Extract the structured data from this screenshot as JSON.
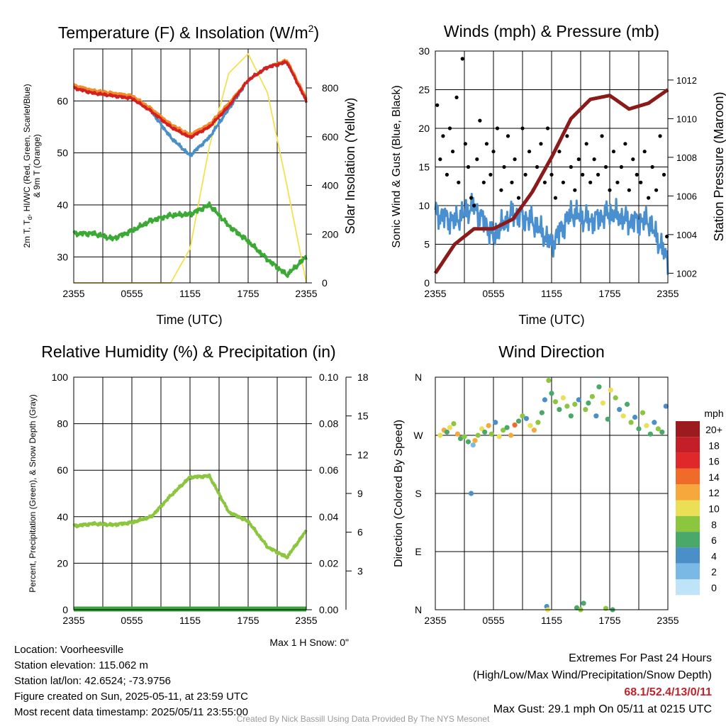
{
  "x_ticks": [
    "2355",
    "0555",
    "1155",
    "1755",
    "2355"
  ],
  "panels": {
    "temperature": {
      "title_main": "Temperature (F) & Insolation (W/m",
      "title_sup": "2",
      "title_end": ")",
      "xlabel": "Time (UTC)",
      "ylabel_left_1": "2m T, T",
      "ylabel_left_sub": "d",
      "ylabel_left_2": ", HI/WC (Red, Green, Scarlet/Blue)",
      "ylabel_left_3": "& 9m T (Orange)",
      "ylabel_right": "Solar Insolation (Yellow)"
    },
    "winds": {
      "title": "Winds (mph) & Pressure (mb)",
      "xlabel": "Time (UTC)",
      "ylabel_left": "Sonic Wind & Gust (Blue, Black)",
      "ylabel_right": "Station Pressure (Maroon)"
    },
    "humidity": {
      "title": "Relative Humidity (%) & Precipitation (in)",
      "ylabel_left": "Percent, Precipitation (Green), & Snow Depth (Gray)",
      "snow_note": "Max 1 H Snow: 0\""
    },
    "direction": {
      "title": "Wind Direction",
      "ylabel": "Direction (Colored By Speed)",
      "legend_title": "mph"
    }
  },
  "info": {
    "location": "Location: Voorheesville",
    "elevation": "Station elevation: 115.062 m",
    "latlon": "Station lat/lon: 42.6524; -73.9756",
    "created": "Figure created on Sun, 2025-05-11, at 23:59 UTC",
    "recent": "Most recent data timestamp: 2025/05/11 23:55:00"
  },
  "extremes": {
    "title": "Extremes For Past 24 Hours",
    "subtitle": "(High/Low/Max Wind/Precipitation/Snow Depth)",
    "values": "68.1/52.4/13/0/11",
    "gust": "Max Gust: 29.1 mph On 05/11 at 0215 UTC"
  },
  "credit": "Created By Nick Bassill Using Data Provided By The NYS Mesonet",
  "colors": {
    "temp_red": "#d42020",
    "temp_orange": "#f28c28",
    "temp_blue": "#4a90c8",
    "dewpoint_green": "#3aaa35",
    "solar_yellow": "#f5e050",
    "wind_blue": "#4a90d0",
    "gust_black": "#000000",
    "pressure_maroon": "#8b1a1a",
    "rh_green": "#8cc63f",
    "precip_green": "#3aa33a"
  },
  "chart_data": [
    {
      "type": "line",
      "x": [
        0,
        2,
        4,
        6,
        8,
        10,
        12,
        14,
        16,
        18,
        20,
        22,
        24
      ],
      "ylim_left": [
        25,
        70
      ],
      "ylim_right": [
        0,
        960
      ],
      "y_ticks_left": [
        30,
        40,
        50,
        60
      ],
      "y_ticks_right": [
        0,
        200,
        400,
        600,
        800
      ],
      "series": [
        {
          "key": "t2m",
          "axis": "left",
          "values": [
            62.5,
            61.5,
            61,
            60.5,
            58,
            55,
            53,
            55,
            59,
            64,
            66.5,
            67.5,
            60
          ]
        },
        {
          "key": "t9m",
          "axis": "left",
          "values": [
            63,
            62,
            61.5,
            61,
            58.5,
            55.5,
            53.5,
            55.5,
            59.5,
            64,
            66.5,
            67.8,
            60.5
          ]
        },
        {
          "key": "hiwc",
          "axis": "left",
          "values": [
            null,
            null,
            null,
            null,
            58,
            53,
            49.5,
            53,
            58.5,
            64,
            66.5,
            67.5,
            60
          ]
        },
        {
          "key": "dewpoint",
          "axis": "left",
          "values": [
            34.5,
            34.5,
            33.5,
            35,
            37,
            38,
            38.2,
            40,
            36,
            33,
            29.5,
            26.5,
            30
          ]
        },
        {
          "key": "solar",
          "axis": "right",
          "values": [
            0,
            0,
            0,
            0,
            0,
            0,
            140,
            560,
            860,
            940,
            780,
            400,
            0
          ]
        }
      ]
    },
    {
      "type": "line",
      "x": [
        0,
        2,
        4,
        6,
        8,
        10,
        12,
        14,
        16,
        18,
        20,
        22,
        24
      ],
      "ylim_left": [
        0,
        30
      ],
      "ylim_right": [
        1001.5,
        1013.5
      ],
      "y_ticks_left": [
        0,
        5,
        10,
        15,
        20,
        25,
        30
      ],
      "y_ticks_right": [
        1002,
        1004,
        1006,
        1008,
        1010,
        1012
      ],
      "series": [
        {
          "key": "sonic_wind",
          "axis": "left",
          "values": [
            9,
            8,
            10,
            6,
            9,
            8,
            5,
            9,
            8,
            9,
            8,
            8,
            3
          ]
        },
        {
          "key": "pressure",
          "axis": "right",
          "values": [
            1002,
            1003.5,
            1004.3,
            1004.3,
            1004.8,
            1006.2,
            1008,
            1010,
            1011,
            1011.2,
            1010.5,
            1010.8,
            1011.5
          ]
        }
      ],
      "gust_points": [
        [
          0.2,
          23
        ],
        [
          0.5,
          16
        ],
        [
          0.8,
          19
        ],
        [
          1.2,
          14
        ],
        [
          1.5,
          20
        ],
        [
          1.8,
          17
        ],
        [
          2.2,
          24
        ],
        [
          2.4,
          13
        ],
        [
          2.8,
          29
        ],
        [
          3.1,
          18
        ],
        [
          3.4,
          15
        ],
        [
          3.7,
          11
        ],
        [
          4.0,
          10
        ],
        [
          4.3,
          16
        ],
        [
          4.6,
          21
        ],
        [
          5.0,
          13
        ],
        [
          5.3,
          18
        ],
        [
          5.7,
          14
        ],
        [
          6.0,
          17
        ],
        [
          6.4,
          20
        ],
        [
          6.8,
          12
        ],
        [
          7.1,
          15
        ],
        [
          7.5,
          19
        ],
        [
          7.9,
          13
        ],
        [
          8.2,
          16
        ],
        [
          8.6,
          11
        ],
        [
          9.0,
          20
        ],
        [
          9.3,
          14
        ],
        [
          9.7,
          17
        ],
        [
          10.1,
          12
        ],
        [
          10.5,
          15
        ],
        [
          10.9,
          18
        ],
        [
          11.3,
          13
        ],
        [
          11.6,
          20
        ],
        [
          12.0,
          14
        ],
        [
          12.4,
          11
        ],
        [
          12.8,
          17
        ],
        [
          13.2,
          13
        ],
        [
          13.6,
          19
        ],
        [
          14.0,
          15
        ],
        [
          14.4,
          12
        ],
        [
          14.8,
          16
        ],
        [
          15.2,
          14
        ],
        [
          15.6,
          18
        ],
        [
          16.0,
          13
        ],
        [
          16.4,
          16
        ],
        [
          16.8,
          14
        ],
        [
          17.2,
          19
        ],
        [
          17.6,
          15
        ],
        [
          18.0,
          12
        ],
        [
          18.4,
          17
        ],
        [
          18.8,
          13
        ],
        [
          19.2,
          15
        ],
        [
          19.6,
          18
        ],
        [
          20.0,
          12
        ],
        [
          20.4,
          16
        ],
        [
          20.8,
          14
        ],
        [
          21.2,
          13
        ],
        [
          21.6,
          17
        ],
        [
          22.0,
          11
        ],
        [
          22.4,
          15
        ],
        [
          22.8,
          12
        ],
        [
          23.2,
          19
        ],
        [
          23.6,
          14
        ],
        [
          23.9,
          6
        ]
      ]
    },
    {
      "type": "line",
      "x": [
        0,
        2,
        4,
        6,
        8,
        10,
        12,
        14,
        16,
        18,
        20,
        22,
        24
      ],
      "ylim_left": [
        0,
        100
      ],
      "ylim_mid": [
        0,
        0.1
      ],
      "ylim_right": [
        0,
        18
      ],
      "y_ticks_left": [
        0,
        20,
        40,
        60,
        80,
        100
      ],
      "y_ticks_mid": [
        "0.00",
        "0.02",
        "0.04",
        "0.06",
        "0.08",
        "0.10"
      ],
      "y_ticks_right": [
        3,
        6,
        9,
        12,
        15,
        18
      ],
      "series": [
        {
          "key": "rh",
          "axis": "left",
          "values": [
            36,
            37,
            36.5,
            37.5,
            40,
            49,
            57,
            57.5,
            42,
            38,
            27,
            22.5,
            34
          ]
        },
        {
          "key": "precip",
          "axis": "mid",
          "values": [
            0,
            0,
            0,
            0,
            0,
            0,
            0,
            0,
            0,
            0,
            0,
            0,
            0
          ]
        }
      ]
    },
    {
      "type": "scatter",
      "y_ticks": [
        "N",
        "E",
        "S",
        "W",
        "N"
      ],
      "ylim": [
        0,
        360
      ],
      "legend_labels": [
        "20+",
        "18",
        "16",
        "14",
        "12",
        "10",
        "8",
        "6",
        "4",
        "2",
        "0"
      ],
      "legend_colors": [
        "#9b1b1f",
        "#c41e28",
        "#e0282a",
        "#f06a2a",
        "#f7a83c",
        "#eadf55",
        "#8cc63f",
        "#4aa86a",
        "#4a8fc8",
        "#7ab8e6",
        "#bfe3f7"
      ],
      "points": [
        {
          "x": 0.5,
          "dir": 270,
          "speed": 10
        },
        {
          "x": 0.9,
          "dir": 278,
          "speed": 12
        },
        {
          "x": 1.2,
          "dir": 275,
          "speed": 6
        },
        {
          "x": 1.5,
          "dir": 282,
          "speed": 10
        },
        {
          "x": 1.9,
          "dir": 288,
          "speed": 8
        },
        {
          "x": 2.3,
          "dir": 272,
          "speed": 12
        },
        {
          "x": 2.6,
          "dir": 265,
          "speed": 6
        },
        {
          "x": 3.0,
          "dir": 268,
          "speed": 8
        },
        {
          "x": 3.4,
          "dir": 260,
          "speed": 5
        },
        {
          "x": 3.7,
          "dir": 180,
          "speed": 4
        },
        {
          "x": 3.9,
          "dir": 255,
          "speed": 2
        },
        {
          "x": 4.1,
          "dir": 262,
          "speed": 12
        },
        {
          "x": 4.4,
          "dir": 270,
          "speed": 8
        },
        {
          "x": 4.8,
          "dir": 280,
          "speed": 10
        },
        {
          "x": 5.1,
          "dir": 275,
          "speed": 6
        },
        {
          "x": 5.5,
          "dir": 285,
          "speed": 12
        },
        {
          "x": 5.8,
          "dir": 272,
          "speed": 8
        },
        {
          "x": 6.2,
          "dir": 290,
          "speed": 4
        },
        {
          "x": 6.6,
          "dir": 268,
          "speed": 10
        },
        {
          "x": 7.0,
          "dir": 278,
          "speed": 8
        },
        {
          "x": 7.4,
          "dir": 282,
          "speed": 6
        },
        {
          "x": 7.8,
          "dir": 270,
          "speed": 12
        },
        {
          "x": 8.2,
          "dir": 286,
          "speed": 14
        },
        {
          "x": 8.6,
          "dir": 292,
          "speed": 6
        },
        {
          "x": 9.0,
          "dir": 300,
          "speed": 8
        },
        {
          "x": 9.4,
          "dir": 296,
          "speed": 4
        },
        {
          "x": 9.8,
          "dir": 285,
          "speed": 10
        },
        {
          "x": 10.2,
          "dir": 278,
          "speed": 12
        },
        {
          "x": 10.6,
          "dir": 290,
          "speed": 8
        },
        {
          "x": 11.0,
          "dir": 305,
          "speed": 6
        },
        {
          "x": 11.3,
          "dir": 325,
          "speed": 4
        },
        {
          "x": 11.5,
          "dir": 5,
          "speed": 4
        },
        {
          "x": 11.6,
          "dir": 0,
          "speed": 10
        },
        {
          "x": 11.7,
          "dir": 355,
          "speed": 8
        },
        {
          "x": 12.0,
          "dir": 335,
          "speed": 6
        },
        {
          "x": 12.4,
          "dir": 322,
          "speed": 8
        },
        {
          "x": 12.8,
          "dir": 310,
          "speed": 6
        },
        {
          "x": 13.2,
          "dir": 328,
          "speed": 10
        },
        {
          "x": 13.6,
          "dir": 315,
          "speed": 8
        },
        {
          "x": 14.0,
          "dir": 300,
          "speed": 6
        },
        {
          "x": 14.4,
          "dir": 318,
          "speed": 8
        },
        {
          "x": 14.6,
          "dir": 3,
          "speed": 6
        },
        {
          "x": 14.8,
          "dir": 325,
          "speed": 4
        },
        {
          "x": 15.0,
          "dir": 0,
          "speed": 8
        },
        {
          "x": 15.3,
          "dir": 10,
          "speed": 6
        },
        {
          "x": 15.5,
          "dir": 310,
          "speed": 8
        },
        {
          "x": 15.8,
          "dir": 320,
          "speed": 6
        },
        {
          "x": 16.2,
          "dir": 330,
          "speed": 8
        },
        {
          "x": 16.6,
          "dir": 300,
          "speed": 4
        },
        {
          "x": 16.9,
          "dir": 345,
          "speed": 6
        },
        {
          "x": 17.3,
          "dir": 320,
          "speed": 10
        },
        {
          "x": 17.6,
          "dir": 2,
          "speed": 8
        },
        {
          "x": 17.8,
          "dir": 295,
          "speed": 6
        },
        {
          "x": 18.1,
          "dir": 340,
          "speed": 10
        },
        {
          "x": 18.3,
          "dir": 0,
          "speed": 6
        },
        {
          "x": 18.6,
          "dir": 328,
          "speed": 8
        },
        {
          "x": 19.0,
          "dir": 310,
          "speed": 4
        },
        {
          "x": 19.4,
          "dir": 300,
          "speed": 10
        },
        {
          "x": 19.8,
          "dir": 318,
          "speed": 6
        },
        {
          "x": 20.2,
          "dir": 290,
          "speed": 8
        },
        {
          "x": 20.6,
          "dir": 298,
          "speed": 4
        },
        {
          "x": 21.0,
          "dir": 280,
          "speed": 6
        },
        {
          "x": 21.4,
          "dir": 305,
          "speed": 8
        },
        {
          "x": 21.8,
          "dir": 285,
          "speed": 10
        },
        {
          "x": 22.2,
          "dir": 272,
          "speed": 6
        },
        {
          "x": 22.6,
          "dir": 290,
          "speed": 4
        },
        {
          "x": 23.0,
          "dir": 280,
          "speed": 8
        },
        {
          "x": 23.4,
          "dir": 275,
          "speed": 6
        },
        {
          "x": 23.8,
          "dir": 315,
          "speed": 4
        }
      ]
    }
  ]
}
